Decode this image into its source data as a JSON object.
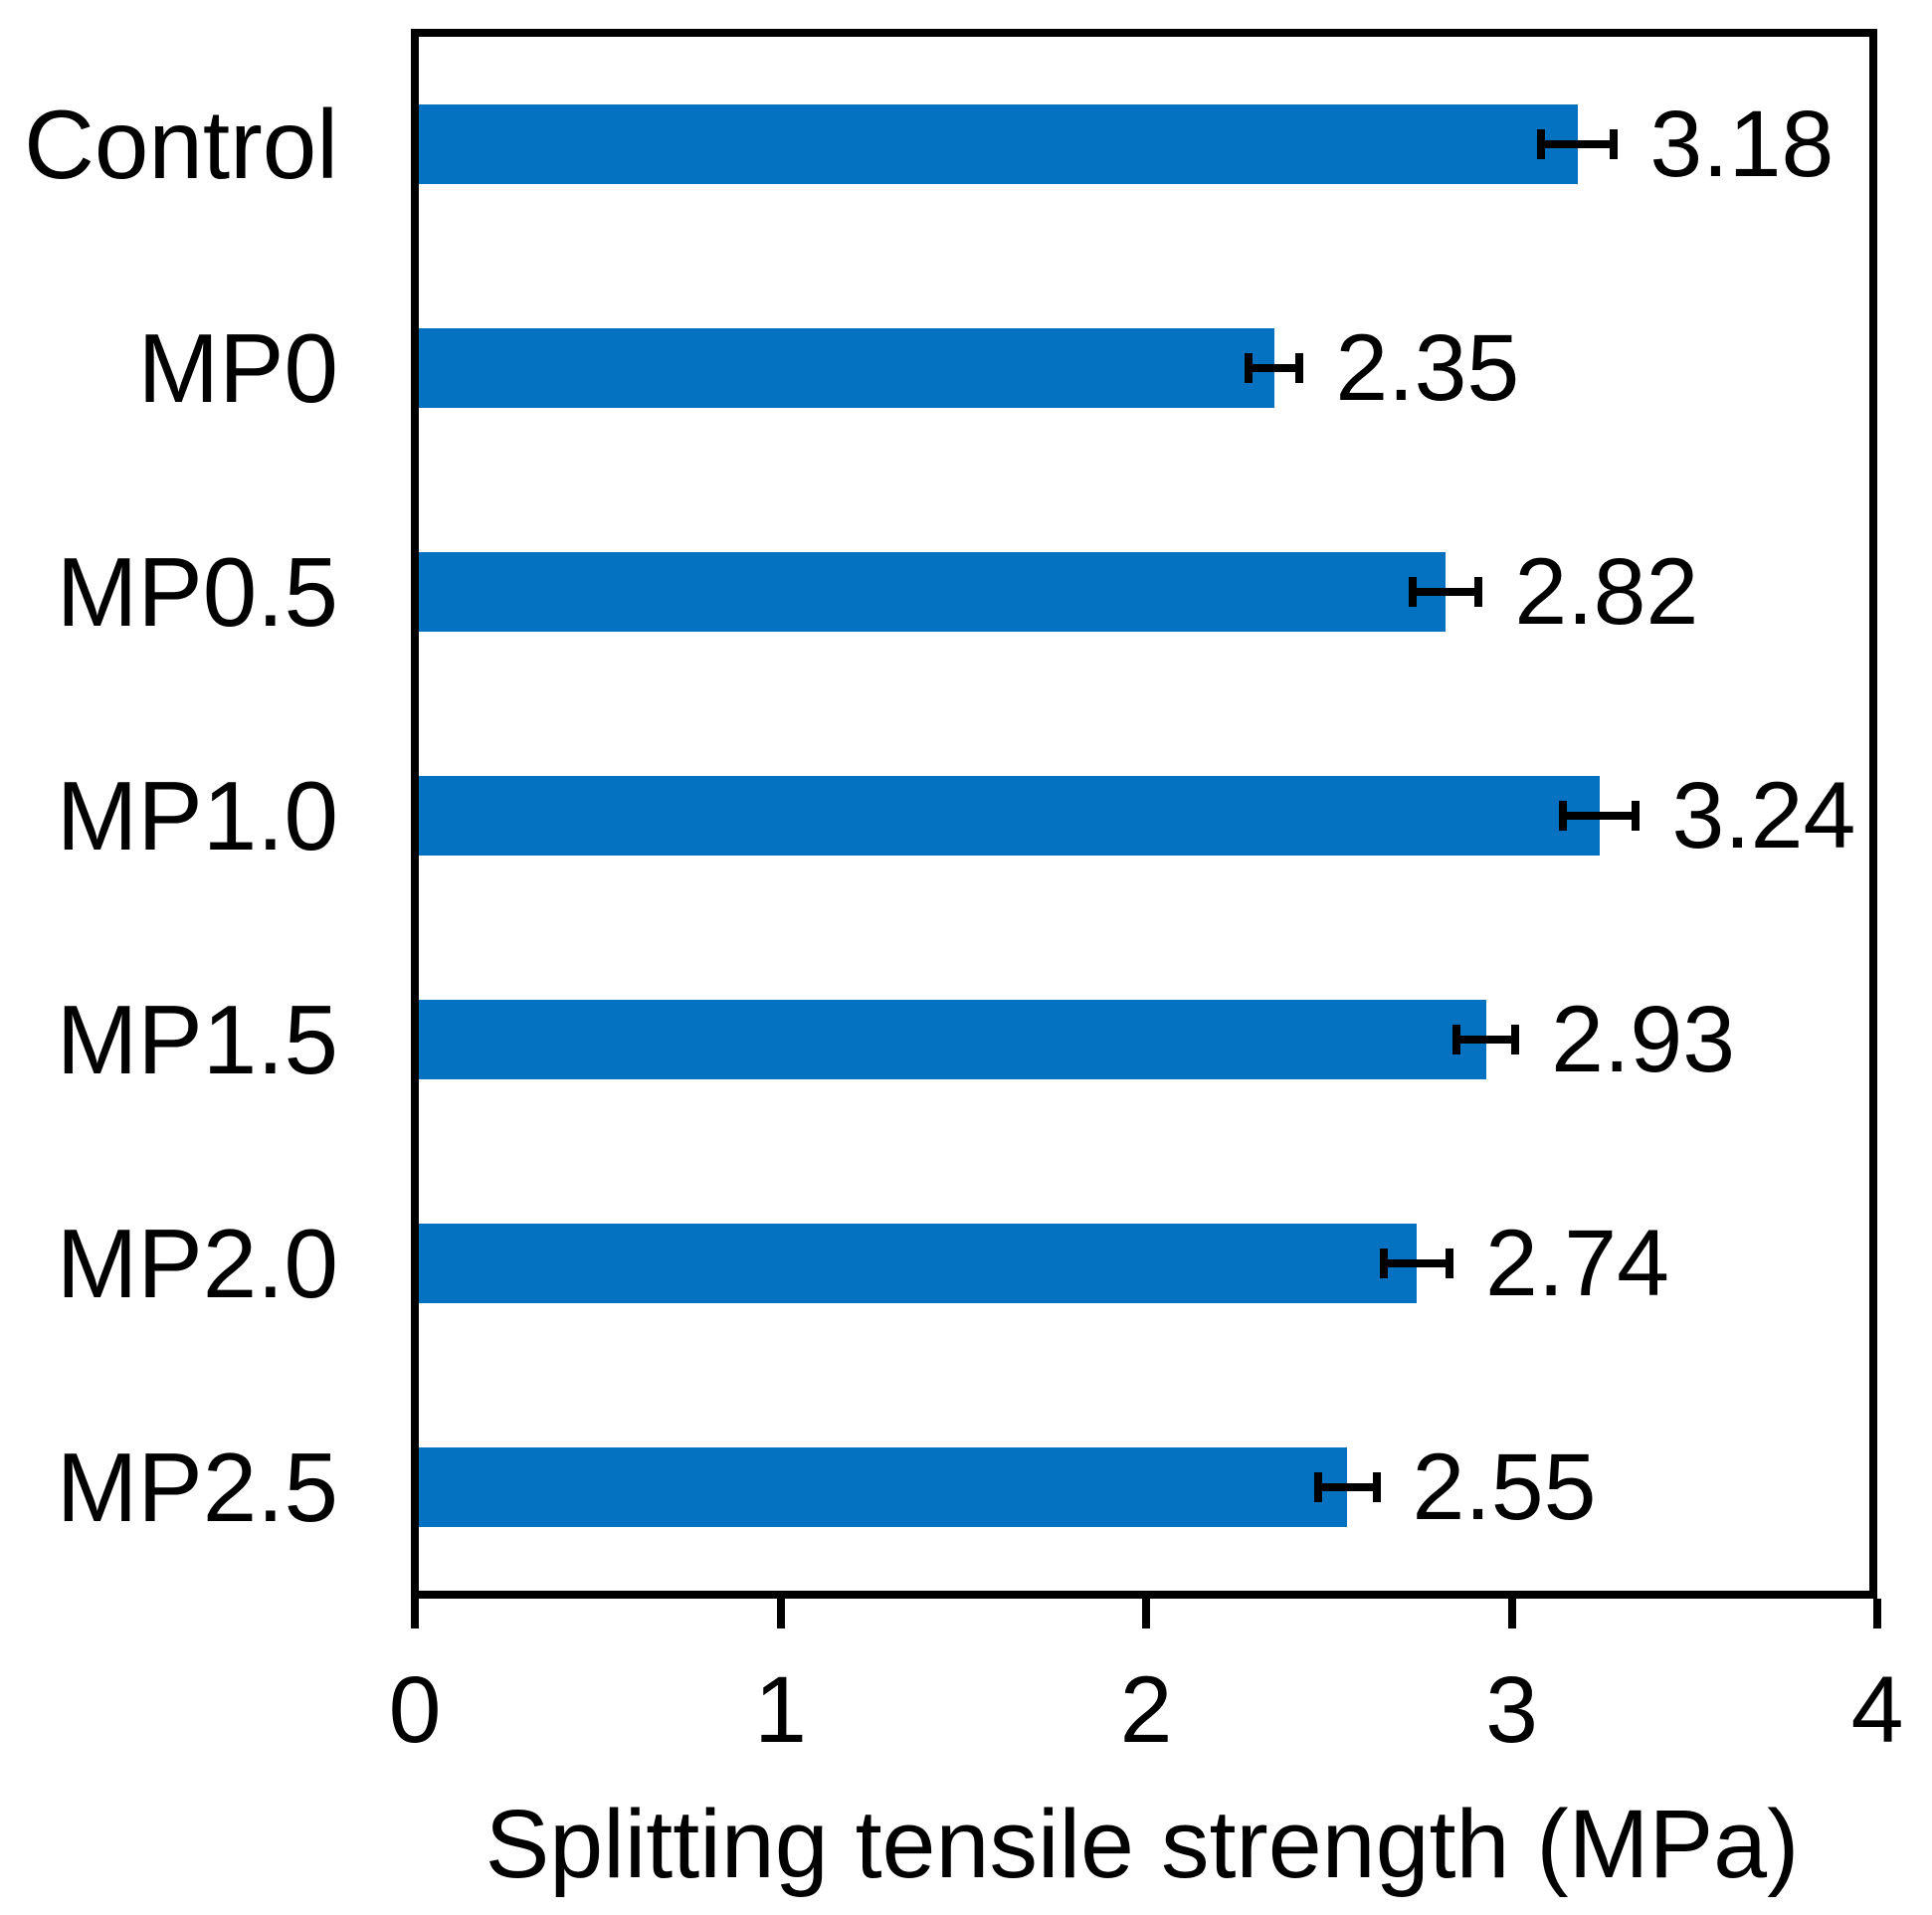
{
  "figure": {
    "background": "#ffffff",
    "axis_color": "#000000"
  },
  "chart_data": {
    "type": "bar",
    "orientation": "horizontal",
    "title": "",
    "xlabel": "Splitting tensile strength (MPa)",
    "ylabel": "",
    "categories": [
      "Control",
      "MP0",
      "MP0.5",
      "MP1.0",
      "MP1.5",
      "MP2.0",
      "MP2.5"
    ],
    "values": [
      3.18,
      2.35,
      2.82,
      3.24,
      2.93,
      2.74,
      2.55
    ],
    "value_labels": [
      "3.18",
      "2.35",
      "2.82",
      "3.24",
      "2.93",
      "2.74",
      "2.55"
    ],
    "errors": [
      0.1,
      0.07,
      0.09,
      0.1,
      0.08,
      0.09,
      0.08
    ],
    "xlim": [
      0,
      4
    ],
    "xticks": [
      0,
      1,
      2,
      3,
      4
    ],
    "xtick_labels": [
      "0",
      "1",
      "2",
      "3",
      "4"
    ],
    "grid": false,
    "legend": null,
    "bar_color": "#0571C1",
    "error_bar_color": "#000000"
  }
}
